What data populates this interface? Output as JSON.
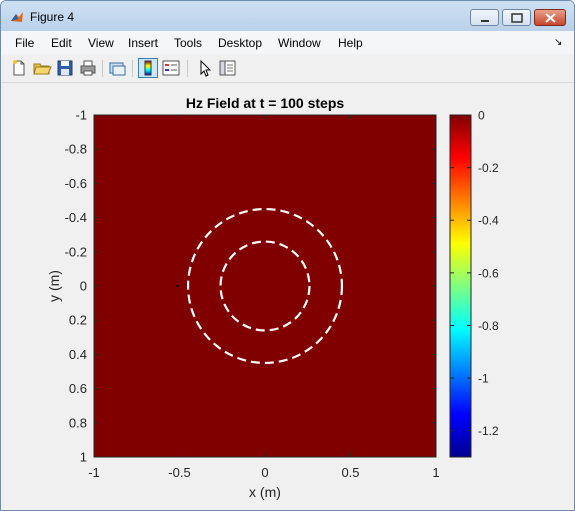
{
  "window": {
    "title": "Figure 4"
  },
  "menu": {
    "items": [
      "File",
      "Edit",
      "View",
      "Insert",
      "Tools",
      "Desktop",
      "Window",
      "Help"
    ],
    "dock_glyph": "↘"
  },
  "toolbar": {
    "buttons": [
      {
        "name": "new-figure-icon"
      },
      {
        "name": "open-file-icon"
      },
      {
        "name": "save-icon"
      },
      {
        "name": "print-icon"
      },
      {
        "name": "link-plot-icon"
      },
      {
        "name": "insert-colorbar-icon",
        "active": true
      },
      {
        "name": "insert-legend-icon"
      },
      {
        "name": "edit-plot-pointer-icon"
      },
      {
        "name": "show-plot-tools-icon"
      }
    ]
  },
  "chart_data": {
    "type": "heatmap",
    "title": "Hz Field at t = 100 steps",
    "xlabel": "x (m)",
    "ylabel": "y (m)",
    "xlim": [
      -1,
      1
    ],
    "ylim": [
      -1,
      1
    ],
    "y_reversed": true,
    "x_ticks": [
      "-1",
      "-0.5",
      "0",
      "0.5",
      "1"
    ],
    "y_ticks": [
      "-1",
      "-0.8",
      "-0.6",
      "-0.4",
      "-0.2",
      "0",
      "0.2",
      "0.4",
      "0.6",
      "0.8",
      "1"
    ],
    "field_value": 0,
    "field_color": "#800000",
    "colorbar": {
      "colormap": "jet",
      "clim": [
        -1.3,
        0
      ],
      "ticks": [
        "0",
        "-0.2",
        "-0.4",
        "-0.6",
        "-0.8",
        "-1",
        "-1.2"
      ]
    },
    "overlays": [
      {
        "shape": "circle",
        "center": [
          0,
          0
        ],
        "radius": 0.45,
        "style": "dashed",
        "color": "#ffffff"
      },
      {
        "shape": "circle",
        "center": [
          0,
          0
        ],
        "radius": 0.26,
        "style": "dashed",
        "color": "#ffffff"
      }
    ],
    "source_marker": {
      "x": -0.5,
      "y": 0
    }
  }
}
